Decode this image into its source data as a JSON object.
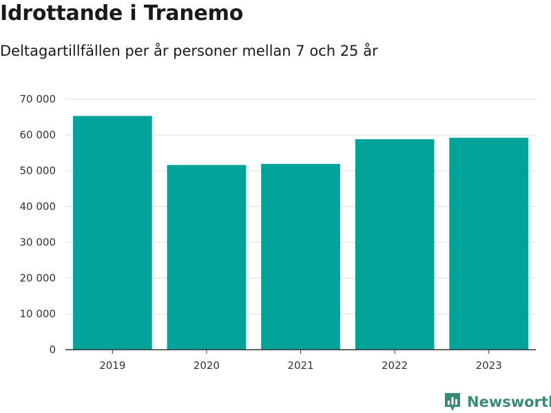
{
  "header": {
    "title": "Idrottande i Tranemo",
    "subtitle": "Deltagartillfällen per år personer mellan 7 och 25 år"
  },
  "chart_data": {
    "type": "bar",
    "title": "Idrottande i Tranemo",
    "subtitle": "Deltagartillfällen per år personer mellan 7 och 25 år",
    "xlabel": "",
    "ylabel": "",
    "categories": [
      "2019",
      "2020",
      "2021",
      "2022",
      "2023"
    ],
    "values": [
      65300,
      51600,
      51900,
      58800,
      59200
    ],
    "ylim": [
      0,
      70000
    ],
    "yticks": [
      0,
      10000,
      20000,
      30000,
      40000,
      50000,
      60000,
      70000
    ],
    "ytick_labels": [
      "0",
      "10 000",
      "20 000",
      "30 000",
      "40 000",
      "50 000",
      "60 000",
      "70 000"
    ],
    "grid": true,
    "bar_color": "#00a39a"
  },
  "brand": {
    "name": "Newsworthy",
    "icon": "newsworthy-logo-icon",
    "color": "#3a8a7a"
  }
}
